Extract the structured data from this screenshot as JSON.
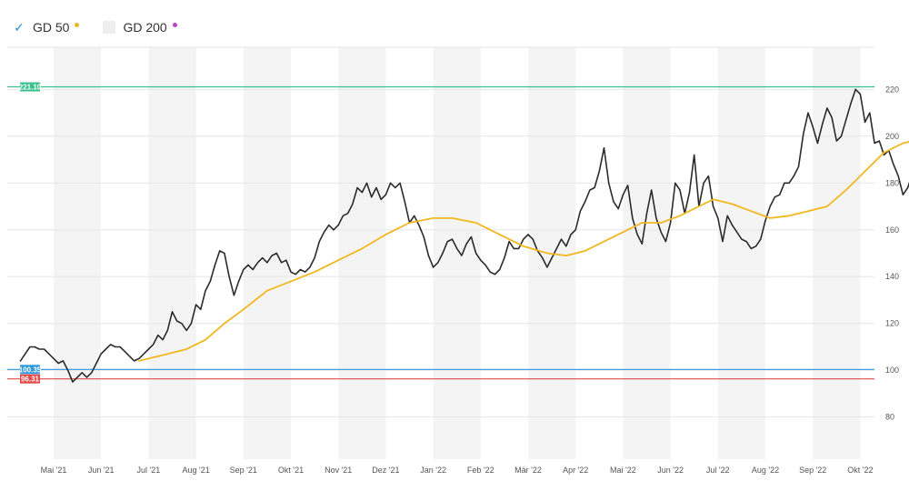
{
  "legend": [
    {
      "label": "GD 50",
      "checked": true,
      "dot_color": "#f0b71f"
    },
    {
      "label": "GD 200",
      "checked": false,
      "dot_color": "#b845c8"
    }
  ],
  "chart_data": {
    "type": "line",
    "xlabels": [
      "Mai '21",
      "Jun '21",
      "Jul '21",
      "Aug '21",
      "Sep '21",
      "Okt '21",
      "Nov '21",
      "Dez '21",
      "Jan '22",
      "Feb '22",
      "Mär '22",
      "Apr '22",
      "Mai '22",
      "Jun '22",
      "Jul '22",
      "Aug '22",
      "Sep '22",
      "Okt '22"
    ],
    "yticks": [
      80,
      100,
      120,
      140,
      160,
      180,
      200,
      220
    ],
    "ylim": [
      62,
      238
    ],
    "xlim": [
      0,
      18.2
    ],
    "grid": true,
    "legend_position": "top-left",
    "horizontal_lines": [
      {
        "label": "221.10",
        "value": 221.1,
        "color": "#3ac28e"
      },
      {
        "label": "100.35",
        "value": 100.35,
        "color": "#2e98d8"
      },
      {
        "label": "96.31",
        "value": 96.31,
        "color": "#e24a4a"
      }
    ],
    "series": [
      {
        "name": "",
        "color": "#2b2b2b",
        "points": [
          [
            -0.7,
            104
          ],
          [
            -0.6,
            107
          ],
          [
            -0.5,
            110
          ],
          [
            -0.4,
            110
          ],
          [
            -0.3,
            109
          ],
          [
            -0.2,
            109
          ],
          [
            -0.1,
            107
          ],
          [
            0.0,
            105
          ],
          [
            0.1,
            103
          ],
          [
            0.2,
            104
          ],
          [
            0.3,
            100
          ],
          [
            0.4,
            95
          ],
          [
            0.5,
            97
          ],
          [
            0.6,
            99
          ],
          [
            0.7,
            97
          ],
          [
            0.8,
            99
          ],
          [
            0.9,
            103
          ],
          [
            1.0,
            107
          ],
          [
            1.1,
            109
          ],
          [
            1.2,
            111
          ],
          [
            1.3,
            110
          ],
          [
            1.4,
            110
          ],
          [
            1.5,
            108
          ],
          [
            1.6,
            106
          ],
          [
            1.7,
            104
          ],
          [
            1.8,
            105
          ],
          [
            1.9,
            107
          ],
          [
            2.0,
            109
          ],
          [
            2.1,
            111
          ],
          [
            2.2,
            115
          ],
          [
            2.3,
            113
          ],
          [
            2.4,
            117
          ],
          [
            2.5,
            125
          ],
          [
            2.6,
            121
          ],
          [
            2.7,
            120
          ],
          [
            2.8,
            117
          ],
          [
            2.9,
            120
          ],
          [
            3.0,
            128
          ],
          [
            3.1,
            126
          ],
          [
            3.2,
            134
          ],
          [
            3.3,
            138
          ],
          [
            3.4,
            145
          ],
          [
            3.5,
            151
          ],
          [
            3.6,
            150
          ],
          [
            3.7,
            140
          ],
          [
            3.8,
            132
          ],
          [
            3.9,
            138
          ],
          [
            4.0,
            143
          ],
          [
            4.1,
            145
          ],
          [
            4.2,
            143
          ],
          [
            4.3,
            146
          ],
          [
            4.4,
            148
          ],
          [
            4.5,
            146
          ],
          [
            4.6,
            149
          ],
          [
            4.7,
            150
          ],
          [
            4.8,
            146
          ],
          [
            4.9,
            147
          ],
          [
            5.0,
            142
          ],
          [
            5.1,
            141
          ],
          [
            5.2,
            143
          ],
          [
            5.3,
            142
          ],
          [
            5.4,
            144
          ],
          [
            5.5,
            148
          ],
          [
            5.6,
            155
          ],
          [
            5.7,
            159
          ],
          [
            5.8,
            162
          ],
          [
            5.9,
            160
          ],
          [
            6.0,
            162
          ],
          [
            6.1,
            166
          ],
          [
            6.2,
            167
          ],
          [
            6.3,
            171
          ],
          [
            6.4,
            178
          ],
          [
            6.5,
            176
          ],
          [
            6.6,
            180
          ],
          [
            6.7,
            174
          ],
          [
            6.8,
            178
          ],
          [
            6.9,
            173
          ],
          [
            7.0,
            175
          ],
          [
            7.1,
            180
          ],
          [
            7.2,
            178
          ],
          [
            7.3,
            180
          ],
          [
            7.4,
            172
          ],
          [
            7.5,
            163
          ],
          [
            7.6,
            166
          ],
          [
            7.7,
            162
          ],
          [
            7.8,
            157
          ],
          [
            7.9,
            149
          ],
          [
            8.0,
            144
          ],
          [
            8.1,
            146
          ],
          [
            8.2,
            150
          ],
          [
            8.3,
            155
          ],
          [
            8.4,
            156
          ],
          [
            8.5,
            152
          ],
          [
            8.6,
            149
          ],
          [
            8.7,
            154
          ],
          [
            8.8,
            157
          ],
          [
            8.9,
            150
          ],
          [
            9.0,
            147
          ],
          [
            9.1,
            145
          ],
          [
            9.2,
            142
          ],
          [
            9.3,
            141
          ],
          [
            9.4,
            143
          ],
          [
            9.5,
            148
          ],
          [
            9.6,
            155
          ],
          [
            9.7,
            152
          ],
          [
            9.8,
            152
          ],
          [
            9.9,
            156
          ],
          [
            10.0,
            158
          ],
          [
            10.1,
            156
          ],
          [
            10.2,
            151
          ],
          [
            10.3,
            148
          ],
          [
            10.4,
            144
          ],
          [
            10.5,
            148
          ],
          [
            10.6,
            152
          ],
          [
            10.7,
            156
          ],
          [
            10.8,
            153
          ],
          [
            10.9,
            158
          ],
          [
            11.0,
            160
          ],
          [
            11.1,
            168
          ],
          [
            11.2,
            172
          ],
          [
            11.3,
            177
          ],
          [
            11.4,
            178
          ],
          [
            11.5,
            185
          ],
          [
            11.6,
            195
          ],
          [
            11.7,
            180
          ],
          [
            11.8,
            172
          ],
          [
            11.9,
            169
          ],
          [
            12.0,
            175
          ],
          [
            12.1,
            179
          ],
          [
            12.2,
            165
          ],
          [
            12.3,
            158
          ],
          [
            12.4,
            154
          ],
          [
            12.5,
            167
          ],
          [
            12.6,
            177
          ],
          [
            12.7,
            165
          ],
          [
            12.8,
            159
          ],
          [
            12.9,
            155
          ],
          [
            13.0,
            163
          ],
          [
            13.1,
            180
          ],
          [
            13.2,
            177
          ],
          [
            13.3,
            167
          ],
          [
            13.4,
            176
          ],
          [
            13.5,
            192
          ],
          [
            13.6,
            170
          ],
          [
            13.7,
            180
          ],
          [
            13.8,
            183
          ],
          [
            13.9,
            170
          ],
          [
            14.0,
            165
          ],
          [
            14.1,
            155
          ],
          [
            14.2,
            166
          ],
          [
            14.3,
            162
          ],
          [
            14.4,
            159
          ],
          [
            14.5,
            156
          ],
          [
            14.6,
            155
          ],
          [
            14.7,
            152
          ],
          [
            14.8,
            153
          ],
          [
            14.9,
            156
          ],
          [
            15.0,
            164
          ],
          [
            15.1,
            170
          ],
          [
            15.2,
            174
          ],
          [
            15.3,
            175
          ],
          [
            15.4,
            180
          ],
          [
            15.5,
            180
          ],
          [
            15.6,
            183
          ],
          [
            15.7,
            187
          ],
          [
            15.8,
            201
          ],
          [
            15.9,
            210
          ],
          [
            16.0,
            204
          ],
          [
            16.1,
            197
          ],
          [
            16.2,
            205
          ],
          [
            16.3,
            212
          ],
          [
            16.4,
            208
          ],
          [
            16.5,
            198
          ],
          [
            16.6,
            200
          ],
          [
            16.7,
            207
          ],
          [
            16.8,
            214
          ],
          [
            16.9,
            220
          ],
          [
            17.0,
            218
          ],
          [
            17.1,
            206
          ],
          [
            17.2,
            210
          ],
          [
            17.3,
            197
          ],
          [
            17.4,
            198
          ],
          [
            17.5,
            192
          ],
          [
            17.6,
            194
          ],
          [
            17.7,
            188
          ],
          [
            17.8,
            183
          ],
          [
            17.9,
            175
          ],
          [
            18.0,
            178
          ],
          [
            18.1,
            184
          ],
          [
            18.15,
            183
          ]
        ]
      },
      {
        "name": "GD 50",
        "color": "#f0b71f",
        "points": [
          [
            1.8,
            104
          ],
          [
            2.4,
            107
          ],
          [
            2.8,
            109
          ],
          [
            3.2,
            113
          ],
          [
            3.6,
            120
          ],
          [
            4.0,
            126
          ],
          [
            4.5,
            134
          ],
          [
            5.0,
            138
          ],
          [
            5.5,
            142
          ],
          [
            6.0,
            147
          ],
          [
            6.5,
            152
          ],
          [
            7.0,
            158
          ],
          [
            7.5,
            163
          ],
          [
            8.0,
            165
          ],
          [
            8.4,
            165
          ],
          [
            8.9,
            163
          ],
          [
            9.4,
            158
          ],
          [
            9.9,
            153
          ],
          [
            10.4,
            150
          ],
          [
            10.8,
            149
          ],
          [
            11.2,
            151
          ],
          [
            11.6,
            155
          ],
          [
            12.0,
            159
          ],
          [
            12.4,
            163
          ],
          [
            12.8,
            163
          ],
          [
            13.2,
            166
          ],
          [
            13.6,
            170
          ],
          [
            13.9,
            173
          ],
          [
            14.3,
            171
          ],
          [
            14.7,
            168
          ],
          [
            15.1,
            165
          ],
          [
            15.5,
            166
          ],
          [
            15.9,
            168
          ],
          [
            16.3,
            170
          ],
          [
            16.7,
            177
          ],
          [
            17.1,
            185
          ],
          [
            17.5,
            193
          ],
          [
            17.9,
            197
          ],
          [
            18.1,
            198
          ],
          [
            18.3,
            198
          ]
        ]
      }
    ]
  }
}
